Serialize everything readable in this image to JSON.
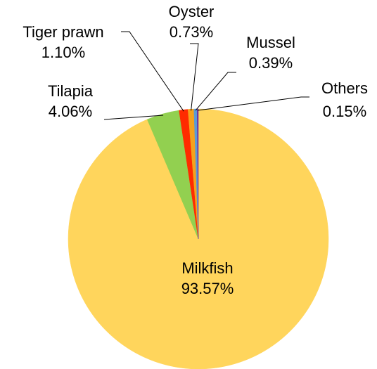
{
  "chart_data": {
    "type": "pie",
    "categories": [
      "Milkfish",
      "Tilapia",
      "Tiger prawn",
      "Oyster",
      "Mussel",
      "Others"
    ],
    "values": [
      93.57,
      4.06,
      1.1,
      0.73,
      0.39,
      0.15
    ],
    "value_labels": [
      "93.57%",
      "4.06%",
      "1.10%",
      "0.73%",
      "0.39%",
      "0.15%"
    ],
    "colors": [
      "#FFD55C",
      "#92D050",
      "#FF2B00",
      "#F5A21C",
      "#5B9BD5",
      "#7030A0"
    ]
  }
}
